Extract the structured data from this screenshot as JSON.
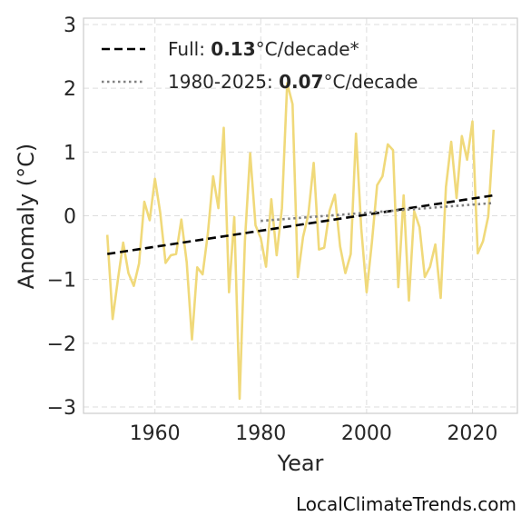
{
  "chart_data": {
    "type": "line",
    "xlabel": "Year",
    "ylabel": "Anomaly (°C)",
    "xlim": [
      1946.5,
      2028.5
    ],
    "ylim": [
      -3.1,
      3.1
    ],
    "x_ticks": [
      1960,
      1980,
      2000,
      2020
    ],
    "y_ticks": [
      -3,
      -2,
      -1,
      0,
      1,
      2,
      3
    ],
    "x_tick_labels": [
      "1960",
      "1980",
      "2000",
      "2020"
    ],
    "y_tick_labels": [
      "−3",
      "−2",
      "−1",
      "0",
      "1",
      "2",
      "3"
    ],
    "grid": true,
    "legend_position": "top-left",
    "colors": {
      "anomaly": "#f0d97a",
      "full_trend": "#000000",
      "recent_trend": "#808080",
      "grid": "#dddddd",
      "frame": "#cccccc"
    },
    "series": [
      {
        "key": "anomaly",
        "x": [
          1951,
          1952,
          1953,
          1954,
          1955,
          1956,
          1957,
          1958,
          1959,
          1960,
          1961,
          1962,
          1963,
          1964,
          1965,
          1966,
          1967,
          1968,
          1969,
          1970,
          1971,
          1972,
          1973,
          1974,
          1975,
          1976,
          1977,
          1978,
          1979,
          1980,
          1981,
          1982,
          1983,
          1984,
          1985,
          1986,
          1987,
          1988,
          1989,
          1990,
          1991,
          1992,
          1993,
          1994,
          1995,
          1996,
          1997,
          1998,
          1999,
          2000,
          2001,
          2002,
          2003,
          2004,
          2005,
          2006,
          2007,
          2008,
          2009,
          2010,
          2011,
          2012,
          2013,
          2014,
          2015,
          2016,
          2017,
          2018,
          2019,
          2020,
          2021,
          2022,
          2023,
          2024
        ],
        "y": [
          -0.3,
          -1.62,
          -1.0,
          -0.42,
          -0.9,
          -1.1,
          -0.75,
          0.22,
          -0.07,
          0.58,
          0.05,
          -0.74,
          -0.62,
          -0.6,
          -0.06,
          -0.73,
          -1.94,
          -0.81,
          -0.92,
          -0.28,
          0.62,
          0.12,
          1.38,
          -1.2,
          -0.02,
          -2.87,
          -0.4,
          0.98,
          -0.15,
          -0.35,
          -0.8,
          0.26,
          -0.62,
          0.12,
          2.08,
          1.75,
          -0.96,
          -0.33,
          0.02,
          0.83,
          -0.53,
          -0.5,
          0.08,
          0.33,
          -0.48,
          -0.9,
          -0.6,
          1.29,
          -0.2,
          -1.2,
          -0.42,
          0.48,
          0.62,
          1.12,
          1.03,
          -1.12,
          0.32,
          -1.33,
          0.07,
          -0.18,
          -0.96,
          -0.8,
          -0.45,
          -1.29,
          0.45,
          1.16,
          0.28,
          1.25,
          0.88,
          1.48,
          -0.59,
          -0.4,
          -0.01,
          1.35
        ]
      },
      {
        "key": "full_trend",
        "name": "Full:",
        "rate": "0.13",
        "unit": "°C/decade*",
        "x": [
          1951,
          2024
        ],
        "y": [
          -0.6,
          0.32
        ],
        "style": "dashed"
      },
      {
        "key": "recent_trend",
        "name": "1980-2025:",
        "rate": "0.07",
        "unit": "°C/decade",
        "x": [
          1980,
          2024
        ],
        "y": [
          -0.08,
          0.2
        ],
        "style": "dotted"
      }
    ]
  },
  "watermark": "LocalClimateTrends.com"
}
